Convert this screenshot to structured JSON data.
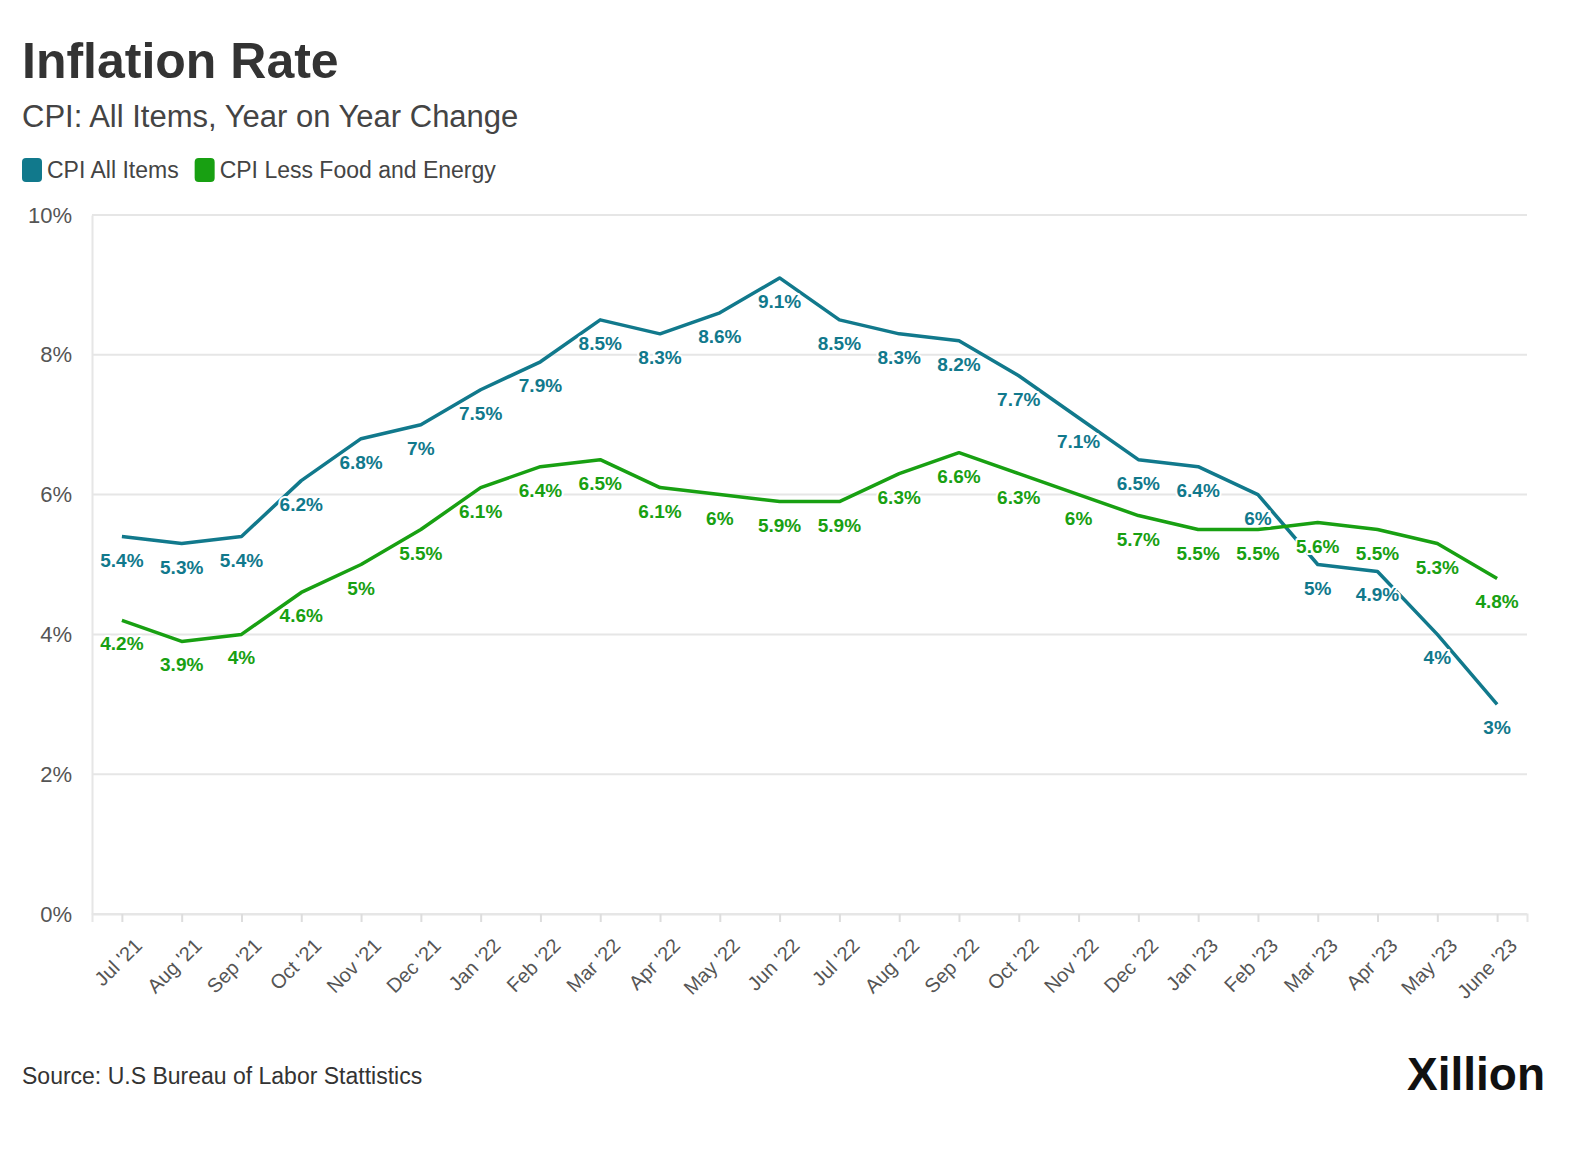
{
  "chart_data": {
    "type": "line",
    "title": "Inflation Rate",
    "subtitle": "CPI: All Items, Year on Year Change",
    "source": "Source: U.S Bureau of Labor Stattistics",
    "annotations": [
      "Xillion"
    ],
    "categories": [
      "Jul '21",
      "Aug '21",
      "Sep '21",
      "Oct '21",
      "Nov '21",
      "Dec '21",
      "Jan '22",
      "Feb '22",
      "Mar '22",
      "Apr '22",
      "May '22",
      "Jun '22",
      "Jul '22",
      "Aug '22",
      "Sep '22",
      "Oct '22",
      "Nov '22",
      "Dec '22",
      "Jan '23",
      "Feb '23",
      "Mar '23",
      "Apr '23",
      "May '23",
      "June '23"
    ],
    "series": [
      {
        "name": "CPI All Items",
        "color": "#11798c",
        "values": [
          5.4,
          5.3,
          5.4,
          6.2,
          6.8,
          7,
          7.5,
          7.9,
          8.5,
          8.3,
          8.6,
          9.1,
          8.5,
          8.3,
          8.2,
          7.7,
          7.1,
          6.5,
          6.4,
          6,
          5,
          4.9,
          4,
          3
        ],
        "value_labels": [
          "5.4%",
          "5.3%",
          "5.4%",
          "6.2%",
          "6.8%",
          "7%",
          "7.5%",
          "7.9%",
          "8.5%",
          "8.3%",
          "8.6%",
          "9.1%",
          "8.5%",
          "8.3%",
          "8.2%",
          "7.7%",
          "7.1%",
          "6.5%",
          "6.4%",
          "6%",
          "5%",
          "4.9%",
          "4%",
          "3%"
        ]
      },
      {
        "name": "CPI Less Food and Energy",
        "color": "#18a012",
        "values": [
          4.2,
          3.9,
          4,
          4.6,
          5,
          5.5,
          6.1,
          6.4,
          6.5,
          6.1,
          6,
          5.9,
          5.9,
          6.3,
          6.6,
          6.3,
          6,
          5.7,
          5.5,
          5.5,
          5.6,
          5.5,
          5.3,
          4.8
        ],
        "value_labels": [
          "4.2%",
          "3.9%",
          "4%",
          "4.6%",
          "5%",
          "5.5%",
          "6.1%",
          "6.4%",
          "6.5%",
          "6.1%",
          "6%",
          "5.9%",
          "5.9%",
          "6.3%",
          "6.6%",
          "6.3%",
          "6%",
          "5.7%",
          "5.5%",
          "5.5%",
          "5.6%",
          "5.5%",
          "5.3%",
          "4.8%"
        ]
      }
    ],
    "ylim": [
      0,
      10
    ],
    "yticks": [
      {
        "value": 0,
        "label": "0%"
      },
      {
        "value": 2,
        "label": "2%"
      },
      {
        "value": 4,
        "label": "4%"
      },
      {
        "value": 6,
        "label": "6%"
      },
      {
        "value": 8,
        "label": "8%"
      },
      {
        "value": 10,
        "label": "10%"
      }
    ],
    "grid": true,
    "legend": "top-left",
    "data_labels": true
  }
}
